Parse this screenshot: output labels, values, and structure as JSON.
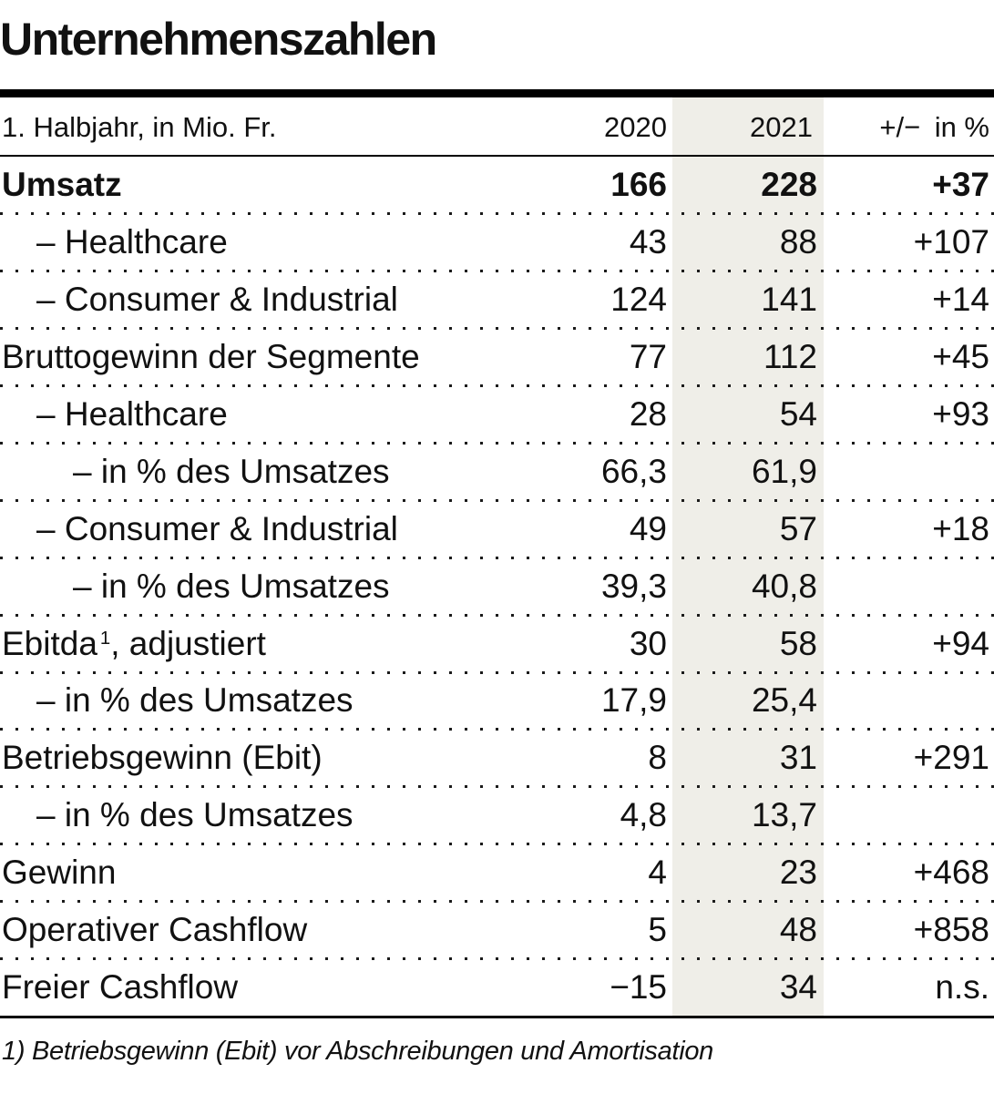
{
  "title": "Unternehmenszahlen",
  "colors": {
    "band": "#efeee8",
    "text": "#111111",
    "rule": "#000000"
  },
  "table": {
    "header": {
      "label": "1. Halbjahr, in Mio. Fr.",
      "y2020": "2020",
      "y2021": "2021",
      "change": "+/− in %"
    },
    "rows": [
      {
        "label": "Umsatz",
        "indent": 0,
        "bold": true,
        "v2020": "166",
        "v2021": "228",
        "change": "+37"
      },
      {
        "label": "– Healthcare",
        "indent": 1,
        "v2020": "43",
        "v2021": "88",
        "change": "+107"
      },
      {
        "label": "– Consumer & Industrial",
        "indent": 1,
        "v2020": "124",
        "v2021": "141",
        "change": "+14"
      },
      {
        "label": "Bruttogewinn der Segmente",
        "indent": 0,
        "v2020": "77",
        "v2021": "112",
        "change": "+45"
      },
      {
        "label": "– Healthcare",
        "indent": 1,
        "v2020": "28",
        "v2021": "54",
        "change": "+93"
      },
      {
        "label": "– in % des Umsatzes",
        "indent": 2,
        "v2020": "66,3",
        "v2021": "61,9",
        "change": ""
      },
      {
        "label": "– Consumer & Industrial",
        "indent": 1,
        "v2020": "49",
        "v2021": "57",
        "change": "+18"
      },
      {
        "label": "– in % des Umsatzes",
        "indent": 2,
        "v2020": "39,3",
        "v2021": "40,8",
        "change": ""
      },
      {
        "label": "Ebitda",
        "label_sup": "1",
        "label_post": ", adjustiert",
        "indent": 0,
        "v2020": "30",
        "v2021": "58",
        "change": "+94"
      },
      {
        "label": "– in % des Umsatzes",
        "indent": 1,
        "v2020": "17,9",
        "v2021": "25,4",
        "change": ""
      },
      {
        "label": "Betriebsgewinn (Ebit)",
        "indent": 0,
        "v2020": "8",
        "v2021": "31",
        "change": "+291"
      },
      {
        "label": "– in % des Umsatzes",
        "indent": 1,
        "v2020": "4,8",
        "v2021": "13,7",
        "change": ""
      },
      {
        "label": "Gewinn",
        "indent": 0,
        "v2020": "4",
        "v2021": "23",
        "change": "+468"
      },
      {
        "label": "Operativer Cashflow",
        "indent": 0,
        "v2020": "5",
        "v2021": "48",
        "change": "+858"
      },
      {
        "label": "Freier Cashflow",
        "indent": 0,
        "v2020": "−15",
        "v2021": "34",
        "change": "n.s."
      }
    ],
    "footnote": "1) Betriebsgewinn (Ebit) vor Abschreibungen und Amortisation"
  },
  "chart_data": {
    "type": "table",
    "title": "Unternehmenszahlen",
    "subtitle": "1. Halbjahr, in Mio. Fr.",
    "columns": [
      "1. Halbjahr, in Mio. Fr.",
      "2020",
      "2021",
      "+/− in %"
    ],
    "highlighted_column": "2021",
    "rows": [
      {
        "label": "Umsatz",
        "indent": 0,
        "v2020": 166,
        "v2021": 228,
        "change_pct": 37
      },
      {
        "label": "Healthcare",
        "indent": 1,
        "v2020": 43,
        "v2021": 88,
        "change_pct": 107
      },
      {
        "label": "Consumer & Industrial",
        "indent": 1,
        "v2020": 124,
        "v2021": 141,
        "change_pct": 14
      },
      {
        "label": "Bruttogewinn der Segmente",
        "indent": 0,
        "v2020": 77,
        "v2021": 112,
        "change_pct": 45
      },
      {
        "label": "Healthcare",
        "indent": 1,
        "v2020": 28,
        "v2021": 54,
        "change_pct": 93
      },
      {
        "label": "in % des Umsatzes",
        "indent": 2,
        "v2020": 66.3,
        "v2021": 61.9,
        "change_pct": null
      },
      {
        "label": "Consumer & Industrial",
        "indent": 1,
        "v2020": 49,
        "v2021": 57,
        "change_pct": 18
      },
      {
        "label": "in % des Umsatzes",
        "indent": 2,
        "v2020": 39.3,
        "v2021": 40.8,
        "change_pct": null
      },
      {
        "label": "Ebitda (1), adjustiert",
        "indent": 0,
        "v2020": 30,
        "v2021": 58,
        "change_pct": 94
      },
      {
        "label": "in % des Umsatzes",
        "indent": 1,
        "v2020": 17.9,
        "v2021": 25.4,
        "change_pct": null
      },
      {
        "label": "Betriebsgewinn (Ebit)",
        "indent": 0,
        "v2020": 8,
        "v2021": 31,
        "change_pct": 291
      },
      {
        "label": "in % des Umsatzes",
        "indent": 1,
        "v2020": 4.8,
        "v2021": 13.7,
        "change_pct": null
      },
      {
        "label": "Gewinn",
        "indent": 0,
        "v2020": 4,
        "v2021": 23,
        "change_pct": 468
      },
      {
        "label": "Operativer Cashflow",
        "indent": 0,
        "v2020": 5,
        "v2021": 48,
        "change_pct": 858
      },
      {
        "label": "Freier Cashflow",
        "indent": 0,
        "v2020": -15,
        "v2021": 34,
        "change_pct": "n.s."
      }
    ],
    "footnote": "1) Betriebsgewinn (Ebit) vor Abschreibungen und Amortisation"
  }
}
